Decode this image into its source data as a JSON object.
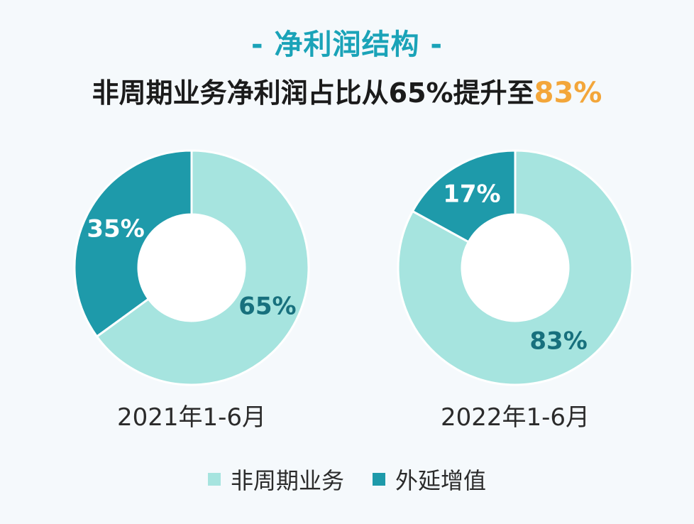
{
  "section_title": "- 净利润结构 -",
  "headline": {
    "prefix": "非周期业务净利润占比从65%提升至",
    "highlight": "83%"
  },
  "colors": {
    "non_cyclical": "#a6e4df",
    "extension": "#1e9aaa",
    "highlight": "#f3a63a",
    "title": "#1aa3b8"
  },
  "legend": [
    {
      "label": "非周期业务",
      "color": "#a6e4df"
    },
    {
      "label": "外延增值",
      "color": "#1e9aaa"
    }
  ],
  "chart_data": [
    {
      "type": "pie",
      "title": "2021年1-6月",
      "categories": [
        "外延增值",
        "非周期业务"
      ],
      "values": [
        35,
        65
      ],
      "labels": [
        "35%",
        "65%"
      ]
    },
    {
      "type": "pie",
      "title": "2022年1-6月",
      "categories": [
        "外延增值",
        "非周期业务"
      ],
      "values": [
        17,
        83
      ],
      "labels": [
        "17%",
        "83%"
      ]
    }
  ]
}
